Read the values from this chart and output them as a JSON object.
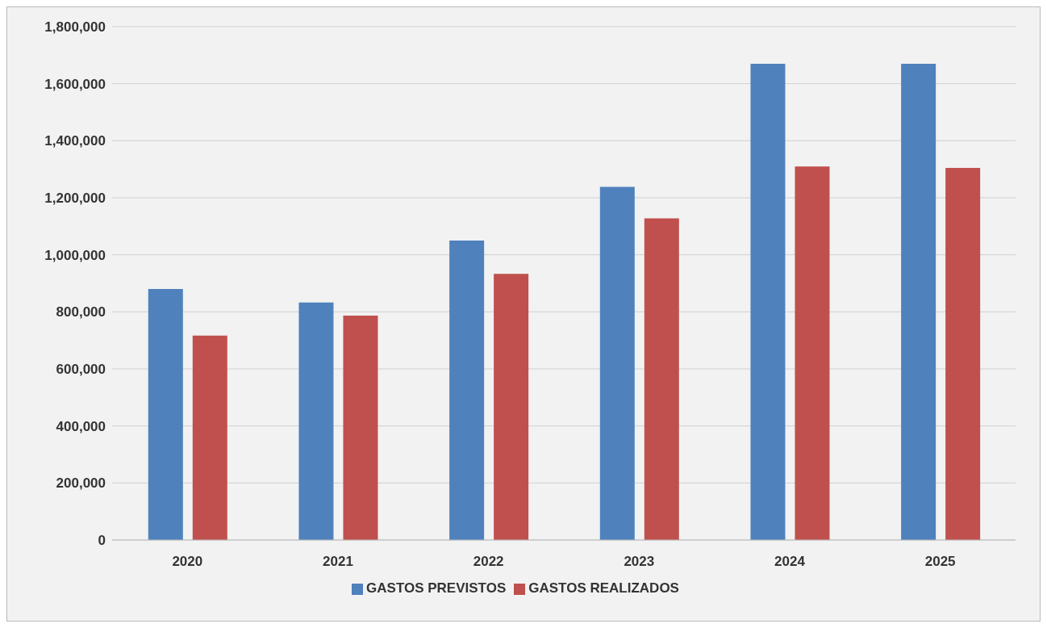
{
  "chart_data": {
    "type": "bar",
    "categories": [
      "2020",
      "2021",
      "2022",
      "2023",
      "2024",
      "2025"
    ],
    "series": [
      {
        "name": "GASTOS PREVISTOS",
        "color": "#4f81bd",
        "values": [
          880000,
          833000,
          1050000,
          1238000,
          1670000,
          1670000
        ]
      },
      {
        "name": "GASTOS REALIZADOS",
        "color": "#c0504d",
        "values": [
          717000,
          787000,
          933000,
          1128000,
          1310000,
          1305000
        ]
      }
    ],
    "ylim": [
      0,
      1800000
    ],
    "yticks": [
      {
        "value": 0,
        "label": "0"
      },
      {
        "value": 200000,
        "label": "200,000"
      },
      {
        "value": 400000,
        "label": "400,000"
      },
      {
        "value": 600000,
        "label": "600,000"
      },
      {
        "value": 800000,
        "label": "800,000"
      },
      {
        "value": 1000000,
        "label": "1,000,000"
      },
      {
        "value": 1200000,
        "label": "1,200,000"
      },
      {
        "value": 1400000,
        "label": "1,400,000"
      },
      {
        "value": 1600000,
        "label": "1,600,000"
      },
      {
        "value": 1800000,
        "label": "1,800,000"
      }
    ],
    "grid": "y",
    "legend": "bottom"
  }
}
